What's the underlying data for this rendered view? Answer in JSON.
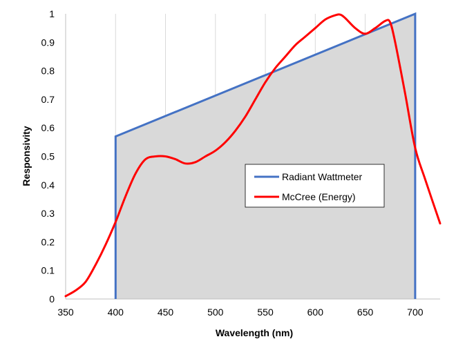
{
  "chart_data": {
    "type": "line",
    "xlabel": "Wavelength (nm)",
    "ylabel": "Responsivity",
    "xlim": [
      350,
      725
    ],
    "ylim": [
      0,
      1
    ],
    "xticks": [
      350,
      400,
      450,
      500,
      550,
      600,
      650,
      700
    ],
    "yticks": [
      0,
      0.1,
      0.2,
      0.3,
      0.4,
      0.5,
      0.6,
      0.7,
      0.8,
      0.9,
      1
    ],
    "yticks_labels": [
      "0",
      "0.1",
      "0.2",
      "0.3",
      "0.4",
      "0.5",
      "0.6",
      "0.7",
      "0.8",
      "0.9",
      "1"
    ],
    "grid": "vertical",
    "legend_position": "center-right",
    "colors": {
      "wattmeter": "#4472c4",
      "mccree": "#ff0000",
      "fill": "#d9d9d9",
      "grid": "#d9d9d9",
      "axis": "#bfbfbf"
    },
    "series": [
      {
        "name": "Radiant Wattmeter",
        "x": [
          400,
          400,
          700,
          700
        ],
        "y": [
          0,
          0.57,
          1.0,
          0
        ]
      },
      {
        "name": "McCree (Energy)",
        "x": [
          350,
          360,
          370,
          380,
          390,
          400,
          410,
          420,
          430,
          440,
          450,
          460,
          470,
          480,
          490,
          500,
          510,
          520,
          530,
          540,
          550,
          560,
          570,
          580,
          590,
          600,
          610,
          620,
          625,
          630,
          640,
          650,
          660,
          670,
          675,
          680,
          690,
          700,
          710,
          725
        ],
        "y": [
          0.01,
          0.03,
          0.06,
          0.12,
          0.19,
          0.27,
          0.36,
          0.44,
          0.49,
          0.5,
          0.5,
          0.49,
          0.475,
          0.48,
          0.5,
          0.52,
          0.55,
          0.59,
          0.64,
          0.7,
          0.76,
          0.81,
          0.85,
          0.89,
          0.92,
          0.95,
          0.98,
          0.995,
          0.997,
          0.985,
          0.95,
          0.93,
          0.95,
          0.975,
          0.97,
          0.9,
          0.72,
          0.53,
          0.42,
          0.265
        ]
      }
    ]
  }
}
